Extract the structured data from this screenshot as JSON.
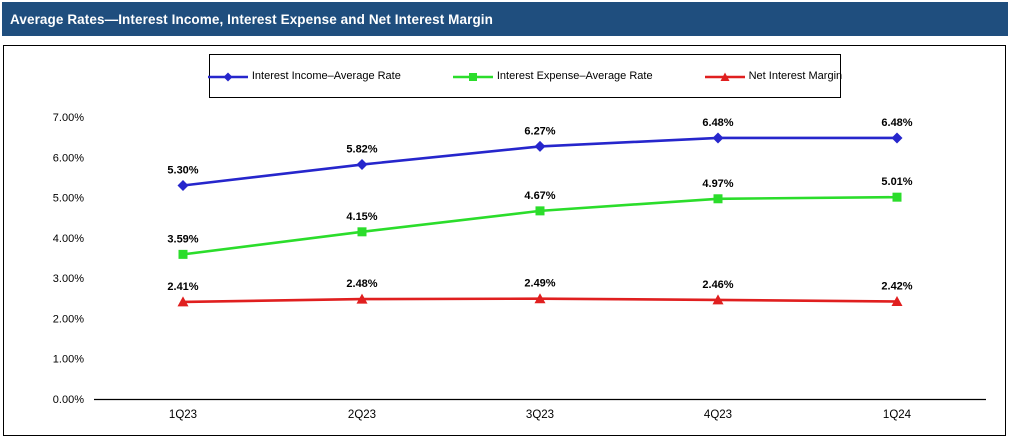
{
  "header": {
    "title": "Average Rates—Interest Income, Interest Expense and Net Interest Margin"
  },
  "colors": {
    "header_bg": "#1F4E7E",
    "header_text": "#FFFFFF",
    "interest_income": "#2626CC",
    "interest_expense": "#2BDD2B",
    "net_interest_margin": "#E01F1F",
    "axis": "#000000",
    "data_label": "#000000"
  },
  "chart_data": {
    "type": "line",
    "title": "Average Rates—Interest Income, Interest Expense and Net Interest Margin",
    "categories": [
      "1Q23",
      "2Q23",
      "3Q23",
      "4Q23",
      "1Q24"
    ],
    "series": [
      {
        "name": "Interest Income–Average Rate",
        "key": "interest-income",
        "color": "#2626CC",
        "marker": "diamond",
        "values": [
          5.3,
          5.82,
          6.27,
          6.48,
          6.48
        ]
      },
      {
        "name": "Interest Expense–Average Rate",
        "key": "interest-expense",
        "color": "#2BDD2B",
        "marker": "square",
        "values": [
          3.59,
          4.15,
          4.67,
          4.97,
          5.01
        ]
      },
      {
        "name": "Net Interest Margin",
        "key": "net-interest-margin",
        "color": "#E01F1F",
        "marker": "triangle",
        "values": [
          2.41,
          2.48,
          2.49,
          2.46,
          2.42
        ]
      }
    ],
    "y_axis": {
      "min": 0,
      "max": 7,
      "step": 1,
      "tick_labels": [
        "0.00%",
        "1.00%",
        "2.00%",
        "3.00%",
        "4.00%",
        "5.00%",
        "6.00%",
        "7.00%"
      ]
    },
    "data_label_format": "0.00%",
    "legend_position": "top-center",
    "grid": false
  }
}
